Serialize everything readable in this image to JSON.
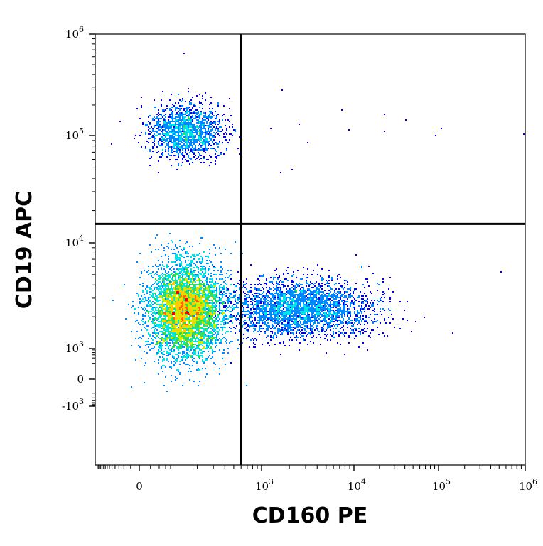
{
  "chart_data": {
    "type": "scatter",
    "subtype": "flow-cytometry-density-dot-plot",
    "title": "",
    "xlabel": "CD160 PE",
    "ylabel": "CD19 APC",
    "x_scale": "biexponential",
    "y_scale": "biexponential",
    "xlim": [
      -400,
      1000000
    ],
    "ylim": [
      -3000,
      1000000
    ],
    "x_ticks": [
      {
        "value": 0,
        "base": "0",
        "exp": ""
      },
      {
        "value": 1000,
        "base": "10",
        "exp": "3"
      },
      {
        "value": 10000,
        "base": "10",
        "exp": "4"
      },
      {
        "value": 100000,
        "base": "10",
        "exp": "5"
      },
      {
        "value": 1000000,
        "base": "10",
        "exp": "6"
      }
    ],
    "y_ticks": [
      {
        "value": -1000,
        "base": "-10",
        "exp": "3"
      },
      {
        "value": 0,
        "base": "0",
        "exp": ""
      },
      {
        "value": 1000,
        "base": "10",
        "exp": "3"
      },
      {
        "value": 10000,
        "base": "10",
        "exp": "4"
      },
      {
        "value": 100000,
        "base": "10",
        "exp": "5"
      },
      {
        "value": 1000000,
        "base": "10",
        "exp": "6"
      }
    ],
    "quadrant_gate": {
      "x": 600,
      "y": 15000
    },
    "populations": [
      {
        "center_x": 150,
        "center_y": 2300,
        "spread": "large",
        "density": "high",
        "peak_color": "red"
      },
      {
        "center_x": 2500,
        "center_y": 2400,
        "spread": "wide",
        "density": "medium",
        "peak_color": "green"
      },
      {
        "center_x": 150,
        "center_y": 110000,
        "spread": "medium",
        "density": "medium",
        "peak_color": "yellow-green"
      }
    ],
    "density_colors": [
      "#0000dd",
      "#0088ff",
      "#00e5e5",
      "#33dd55",
      "#ccee00",
      "#ffcc00",
      "#ff6600",
      "#ee0000"
    ],
    "grid": false,
    "legend": "none"
  }
}
